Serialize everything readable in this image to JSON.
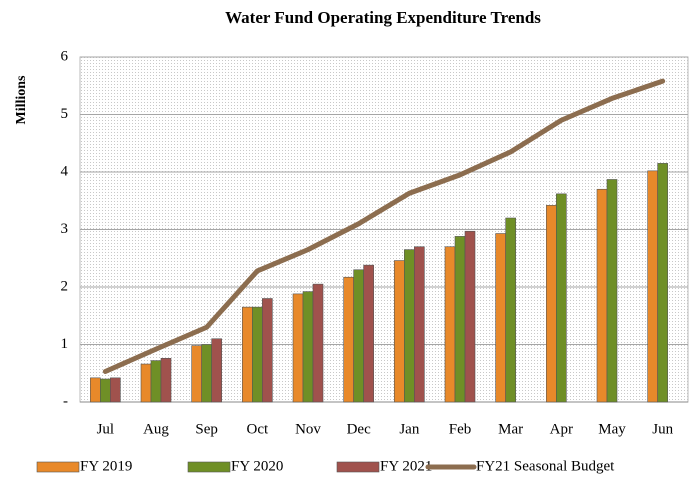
{
  "chart_data": {
    "type": "bar",
    "title": "Water Fund Operating Expenditure Trends",
    "y_label": "Millions",
    "categories": [
      "Jul",
      "Aug",
      "Sep",
      "Oct",
      "Nov",
      "Dec",
      "Jan",
      "Feb",
      "Mar",
      "Apr",
      "May",
      "Jun"
    ],
    "series": [
      {
        "name": "FY 2019",
        "color": "#e8892a",
        "values": [
          0.42,
          0.66,
          0.98,
          1.65,
          1.88,
          2.17,
          2.46,
          2.7,
          2.93,
          3.42,
          3.7,
          4.02
        ]
      },
      {
        "name": "FY 2020",
        "color": "#6f8f26",
        "values": [
          0.4,
          0.72,
          1.0,
          1.65,
          1.92,
          2.3,
          2.65,
          2.88,
          3.2,
          3.62,
          3.87,
          4.15
        ]
      },
      {
        "name": "FY 2021",
        "color": "#a0524d",
        "values": [
          0.42,
          0.76,
          1.1,
          1.8,
          2.05,
          2.38,
          2.7,
          2.97,
          null,
          null,
          null,
          null
        ]
      },
      {
        "name": "FY21 Seasonal Budget",
        "color": "#8c6d4f",
        "type": "line",
        "values": [
          0.53,
          0.92,
          1.3,
          2.28,
          2.65,
          3.1,
          3.63,
          3.95,
          4.35,
          4.9,
          5.28,
          5.58
        ]
      }
    ],
    "ylim": [
      0,
      6
    ],
    "yticks": [
      {
        "value": 0,
        "label": "-"
      },
      1,
      2,
      3,
      4,
      5,
      6
    ],
    "grid": true,
    "legend": "bottom"
  }
}
